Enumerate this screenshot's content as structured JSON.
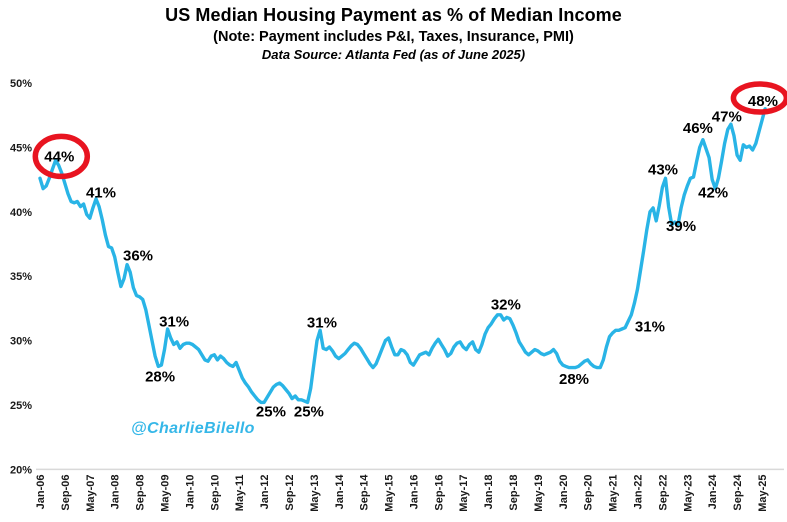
{
  "header": {
    "title": "US Median Housing Payment as % of Median Income",
    "subtitle": "(Note: Payment includes P&I, Taxes, Insurance, PMI)",
    "source": "Data Source: Atlanta Fed (as of June 2025)"
  },
  "watermark": {
    "text": "@CharlieBilello",
    "color": "#35b7e8"
  },
  "colors": {
    "line": "#29b4e6",
    "annotation_circle": "#e81420",
    "axis_text": "#1a1a1a",
    "baseline": "#d9d9d9",
    "annotation_text": "#000000"
  },
  "chart_data": {
    "type": "line",
    "title": "US Median Housing Payment as % of Median Income",
    "subtitle": "(Note: Payment includes P&I, Taxes, Insurance, PMI)",
    "source": "Data Source: Atlanta Fed (as of June 2025)",
    "x_unit": "month",
    "x_start": "Jan-2006",
    "x_end": "Jun-2025",
    "x_tick_every_months": 8,
    "x_tick_labels": [
      "Jan-06",
      "Sep-06",
      "May-07",
      "Jan-08",
      "Sep-08",
      "May-09",
      "Jan-10",
      "Sep-10",
      "May-11",
      "Jan-12",
      "Sep-12",
      "May-13",
      "Jan-14",
      "Sep-14",
      "May-15",
      "Jan-16",
      "Sep-16",
      "May-17",
      "Jan-18",
      "Sep-18",
      "May-19",
      "Jan-20",
      "Sep-20",
      "May-21",
      "Jan-22",
      "Sep-22",
      "May-23",
      "Jan-24",
      "Sep-24",
      "May-25"
    ],
    "y_tick_values": [
      20,
      25,
      30,
      35,
      40,
      45,
      50
    ],
    "y_tick_labels": [
      "20%",
      "25%",
      "30%",
      "35%",
      "40%",
      "45%",
      "50%"
    ],
    "ylim": [
      20,
      50
    ],
    "grid": false,
    "legend": "none",
    "series": [
      {
        "name": "Median housing payment as % of median income",
        "color": "#29b4e6",
        "start_month": "2006-01",
        "frequency": "monthly",
        "values": [
          42.6,
          41.8,
          42.0,
          42.6,
          43.3,
          44.0,
          43.6,
          43.0,
          42.2,
          41.4,
          40.8,
          40.7,
          40.8,
          40.4,
          40.6,
          39.8,
          39.5,
          40.3,
          41.0,
          40.4,
          39.4,
          38.2,
          37.3,
          37.2,
          36.5,
          35.3,
          34.2,
          34.8,
          35.9,
          35.3,
          34.1,
          33.5,
          33.4,
          33.2,
          32.4,
          31.2,
          30.0,
          28.8,
          28.0,
          28.1,
          29.3,
          30.9,
          30.2,
          29.7,
          29.9,
          29.4,
          29.7,
          29.8,
          29.8,
          29.7,
          29.5,
          29.3,
          28.9,
          28.5,
          28.4,
          28.8,
          28.9,
          28.5,
          28.8,
          28.6,
          28.3,
          28.1,
          28.0,
          28.3,
          27.7,
          27.1,
          26.7,
          26.4,
          26.0,
          25.7,
          25.4,
          25.2,
          25.2,
          25.6,
          26.0,
          26.4,
          26.6,
          26.7,
          26.5,
          26.2,
          25.9,
          25.5,
          25.7,
          25.4,
          25.4,
          25.3,
          25.2,
          26.3,
          28.2,
          30.0,
          30.8,
          29.4,
          29.3,
          29.5,
          29.2,
          28.8,
          28.6,
          28.8,
          29.0,
          29.3,
          29.6,
          29.8,
          29.7,
          29.4,
          29.0,
          28.6,
          28.2,
          27.9,
          28.2,
          28.8,
          29.4,
          30.0,
          30.2,
          29.5,
          28.9,
          28.9,
          29.3,
          29.2,
          28.9,
          28.3,
          28.1,
          28.5,
          28.9,
          29.0,
          29.1,
          28.9,
          29.4,
          29.8,
          30.1,
          29.7,
          29.3,
          28.8,
          29.0,
          29.5,
          29.8,
          29.9,
          29.5,
          29.3,
          29.7,
          29.9,
          29.3,
          29.1,
          29.7,
          30.5,
          31.0,
          31.3,
          31.7,
          32.0,
          32.0,
          31.6,
          31.8,
          31.7,
          31.2,
          30.6,
          29.9,
          29.5,
          29.1,
          28.9,
          29.1,
          29.3,
          29.2,
          29.0,
          28.9,
          29.0,
          29.1,
          29.3,
          29.0,
          28.4,
          28.1,
          28.0,
          27.9,
          27.9,
          27.9,
          28.0,
          28.2,
          28.4,
          28.5,
          28.2,
          28.0,
          27.9,
          27.9,
          28.5,
          29.5,
          30.3,
          30.6,
          30.8,
          30.8,
          30.9,
          31.0,
          31.5,
          32.0,
          32.9,
          34.0,
          35.5,
          37.0,
          38.6,
          40.0,
          40.3,
          39.3,
          40.5,
          41.9,
          42.6,
          40.4,
          39.0,
          39.2,
          39.0,
          40.3,
          41.3,
          42.0,
          42.6,
          42.7,
          43.9,
          45.0,
          45.6,
          44.9,
          44.2,
          42.5,
          41.8,
          42.6,
          43.9,
          45.3,
          46.4,
          46.8,
          45.9,
          44.4,
          44.0,
          45.2,
          45.0,
          45.1,
          44.8,
          45.3,
          46.2,
          47.1,
          48.0
        ]
      }
    ],
    "annotations": [
      {
        "label": "44%",
        "month_index": 6.2,
        "pct": 44.3,
        "circled": true,
        "circle_rx": 26,
        "circle_ry": 20,
        "circle_dx": 2,
        "circle_dy": 0
      },
      {
        "label": "41%",
        "month_index": 19.6,
        "pct": 41.5,
        "circled": false
      },
      {
        "label": "36%",
        "month_index": 31.5,
        "pct": 36.6,
        "circled": false
      },
      {
        "label": "28%",
        "month_index": 38.6,
        "pct": 27.2,
        "circled": false
      },
      {
        "label": "31%",
        "month_index": 43.1,
        "pct": 31.5,
        "circled": false
      },
      {
        "label": "25%",
        "month_index": 74.2,
        "pct": 24.5,
        "circled": false
      },
      {
        "label": "25%",
        "month_index": 86.4,
        "pct": 24.5,
        "circled": false
      },
      {
        "label": "31%",
        "month_index": 90.6,
        "pct": 31.4,
        "circled": false
      },
      {
        "label": "32%",
        "month_index": 149.7,
        "pct": 32.8,
        "circled": false
      },
      {
        "label": "28%",
        "month_index": 171.6,
        "pct": 27.0,
        "circled": false
      },
      {
        "label": "31%",
        "month_index": 196.0,
        "pct": 31.1,
        "circled": false
      },
      {
        "label": "43%",
        "month_index": 200.2,
        "pct": 43.3,
        "circled": false
      },
      {
        "label": "39%",
        "month_index": 206.0,
        "pct": 38.9,
        "circled": false
      },
      {
        "label": "46%",
        "month_index": 211.4,
        "pct": 46.5,
        "circled": false
      },
      {
        "label": "42%",
        "month_index": 216.3,
        "pct": 41.5,
        "circled": false
      },
      {
        "label": "47%",
        "month_index": 220.7,
        "pct": 47.4,
        "circled": false
      },
      {
        "label": "48%",
        "month_index": 232.3,
        "pct": 48.6,
        "circled": true,
        "circle_rx": 26.5,
        "circle_ry": 14,
        "circle_dx": -3,
        "circle_dy": -3
      }
    ],
    "watermark": "@CharlieBilello"
  }
}
